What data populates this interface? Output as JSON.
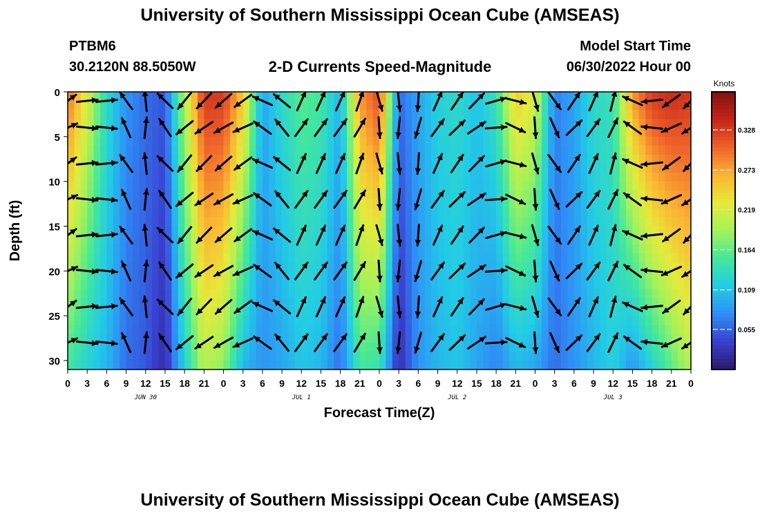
{
  "header": {
    "title": "University of Southern Mississippi Ocean Cube (AMSEAS)",
    "station": "PTBM6",
    "coords": "30.2120N  88.5050W",
    "product": "2-D Currents Speed-Magnitude",
    "model_start_label": "Model Start Time",
    "model_start_value": "06/30/2022 Hour 00",
    "footer_title": "University of Southern Mississippi Ocean Cube (AMSEAS)"
  },
  "chart_data": {
    "type": "heatmap",
    "title": "2-D Currents Speed-Magnitude",
    "xlabel": "Forecast Time(Z)",
    "ylabel": "Depth (ft)",
    "x_tick_labels": [
      "0",
      "3",
      "6",
      "9",
      "12",
      "15",
      "18",
      "21",
      "0",
      "3",
      "6",
      "9",
      "12",
      "15",
      "18",
      "21",
      "0",
      "3",
      "6",
      "9",
      "12",
      "15",
      "18",
      "21",
      "0",
      "3",
      "6",
      "9",
      "12",
      "15",
      "18",
      "21",
      "0"
    ],
    "x_range_hours": [
      0,
      96
    ],
    "day_labels": [
      {
        "label": "JUN 30",
        "hour": 12
      },
      {
        "label": "JUL 1",
        "hour": 36
      },
      {
        "label": "JUL 2",
        "hour": 60
      },
      {
        "label": "JUL 3",
        "hour": 84
      }
    ],
    "y_ticks": [
      0,
      5,
      10,
      15,
      20,
      25,
      30
    ],
    "y_range": [
      0,
      31
    ],
    "y_inverted": true,
    "colorbar": {
      "label": "Knots",
      "ticks": [
        0.055,
        0.109,
        0.164,
        0.219,
        0.273,
        0.328
      ],
      "range": [
        0.0,
        0.38
      ]
    },
    "colormap": [
      "#2a1a6b",
      "#3a3fcf",
      "#2f8ef7",
      "#22cce5",
      "#43e89a",
      "#a4f25a",
      "#e6ea3a",
      "#fbb432",
      "#f0632a",
      "#c4241a",
      "#801210"
    ],
    "speed_profiles": [
      {
        "hour": 0,
        "surface": 0.3,
        "bottom": 0.15
      },
      {
        "hour": 3,
        "surface": 0.22,
        "bottom": 0.12
      },
      {
        "hour": 6,
        "surface": 0.13,
        "bottom": 0.1
      },
      {
        "hour": 9,
        "surface": 0.08,
        "bottom": 0.06
      },
      {
        "hour": 12,
        "surface": 0.06,
        "bottom": 0.05
      },
      {
        "hour": 15,
        "surface": 0.05,
        "bottom": 0.02
      },
      {
        "hour": 18,
        "surface": 0.2,
        "bottom": 0.12
      },
      {
        "hour": 21,
        "surface": 0.33,
        "bottom": 0.2
      },
      {
        "hour": 24,
        "surface": 0.33,
        "bottom": 0.18
      },
      {
        "hour": 27,
        "surface": 0.25,
        "bottom": 0.1
      },
      {
        "hour": 30,
        "surface": 0.09,
        "bottom": 0.08
      },
      {
        "hour": 33,
        "surface": 0.13,
        "bottom": 0.09
      },
      {
        "hour": 36,
        "surface": 0.16,
        "bottom": 0.11
      },
      {
        "hour": 39,
        "surface": 0.15,
        "bottom": 0.1
      },
      {
        "hour": 42,
        "surface": 0.1,
        "bottom": 0.06
      },
      {
        "hour": 45,
        "surface": 0.28,
        "bottom": 0.15
      },
      {
        "hour": 48,
        "surface": 0.32,
        "bottom": 0.14
      },
      {
        "hour": 51,
        "surface": 0.06,
        "bottom": 0.02
      },
      {
        "hour": 54,
        "surface": 0.09,
        "bottom": 0.08
      },
      {
        "hour": 57,
        "surface": 0.12,
        "bottom": 0.1
      },
      {
        "hour": 60,
        "surface": 0.13,
        "bottom": 0.11
      },
      {
        "hour": 63,
        "surface": 0.11,
        "bottom": 0.09
      },
      {
        "hour": 66,
        "surface": 0.14,
        "bottom": 0.07
      },
      {
        "hour": 69,
        "surface": 0.25,
        "bottom": 0.1
      },
      {
        "hour": 72,
        "surface": 0.22,
        "bottom": 0.09
      },
      {
        "hour": 75,
        "surface": 0.07,
        "bottom": 0.06
      },
      {
        "hour": 78,
        "surface": 0.09,
        "bottom": 0.08
      },
      {
        "hour": 81,
        "surface": 0.13,
        "bottom": 0.1
      },
      {
        "hour": 84,
        "surface": 0.14,
        "bottom": 0.12
      },
      {
        "hour": 87,
        "surface": 0.28,
        "bottom": 0.08
      },
      {
        "hour": 90,
        "surface": 0.33,
        "bottom": 0.12
      },
      {
        "hour": 93,
        "surface": 0.34,
        "bottom": 0.16
      },
      {
        "hour": 96,
        "surface": 0.33,
        "bottom": 0.2
      }
    ],
    "vector_depths_ft": [
      1,
      4,
      8,
      12,
      16,
      20,
      24,
      28
    ],
    "vector_directions_deg": [
      {
        "hour": 0,
        "direction": 60
      },
      {
        "hour": 3,
        "direction": 90
      },
      {
        "hour": 6,
        "direction": 90
      },
      {
        "hour": 9,
        "direction": 330
      },
      {
        "hour": 12,
        "direction": 0
      },
      {
        "hour": 15,
        "direction": 320
      },
      {
        "hour": 18,
        "direction": 225
      },
      {
        "hour": 21,
        "direction": 230
      },
      {
        "hour": 24,
        "direction": 235
      },
      {
        "hour": 27,
        "direction": 240
      },
      {
        "hour": 30,
        "direction": 300
      },
      {
        "hour": 33,
        "direction": 315
      },
      {
        "hour": 36,
        "direction": 30
      },
      {
        "hour": 39,
        "direction": 30
      },
      {
        "hour": 42,
        "direction": 30
      },
      {
        "hour": 45,
        "direction": 25
      },
      {
        "hour": 48,
        "direction": 170
      },
      {
        "hour": 51,
        "direction": 180
      },
      {
        "hour": 54,
        "direction": 190
      },
      {
        "hour": 57,
        "direction": 30
      },
      {
        "hour": 60,
        "direction": 40
      },
      {
        "hour": 63,
        "direction": 50
      },
      {
        "hour": 66,
        "direction": 80
      },
      {
        "hour": 69,
        "direction": 110
      },
      {
        "hour": 72,
        "direction": 170
      },
      {
        "hour": 75,
        "direction": 150
      },
      {
        "hour": 78,
        "direction": 40
      },
      {
        "hour": 81,
        "direction": 30
      },
      {
        "hour": 84,
        "direction": 20
      },
      {
        "hour": 87,
        "direction": 300
      },
      {
        "hour": 90,
        "direction": 270
      },
      {
        "hour": 93,
        "direction": 240
      },
      {
        "hour": 96,
        "direction": 230
      }
    ]
  }
}
